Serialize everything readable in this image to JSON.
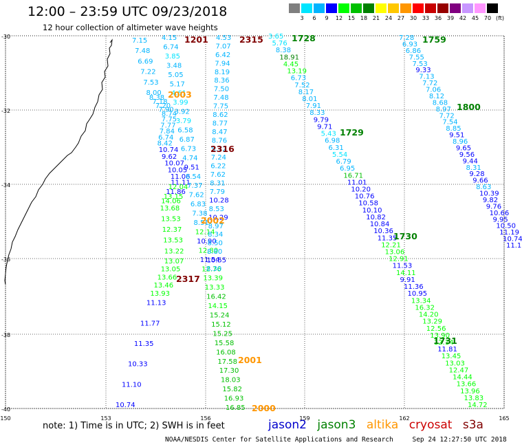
{
  "title": "12:00 – 23:59 UTC 09/23/2018",
  "subtitle": "12 hour collection of altimeter wave heights",
  "colorbar": {
    "labels": [
      "3",
      "6",
      "9",
      "12",
      "15",
      "18",
      "21",
      "24",
      "27",
      "30",
      "33",
      "36",
      "39",
      "42",
      "45",
      "70",
      "(ft)"
    ],
    "colors": [
      "#7f7f7f",
      "#00e5ff",
      "#00b4ff",
      "#0000ff",
      "#00ff00",
      "#00c000",
      "#008000",
      "#ffff00",
      "#ffc800",
      "#ff9600",
      "#ff0000",
      "#c80000",
      "#960000",
      "#800080",
      "#c896ff",
      "#ff96ff",
      "#000000"
    ]
  },
  "map": {
    "lat_labels": [
      "-30",
      "-32",
      "-34",
      "-36",
      "-38",
      "-40"
    ],
    "lon_labels": [
      "150",
      "153",
      "156",
      "159",
      "162",
      "165"
    ]
  },
  "note": "note: 1) Time is in UTC; 2) SWH is in feet",
  "legend": {
    "items": [
      {
        "label": "jason2",
        "color": "#0000cc"
      },
      {
        "label": "jason3",
        "color": "#008000"
      },
      {
        "label": "altika",
        "color": "#ff9600"
      },
      {
        "label": "cryosat",
        "color": "#cc0000"
      },
      {
        "label": "s3a",
        "color": "#800000"
      }
    ]
  },
  "credit": {
    "org": "NOAA/NESDIS Center for Satellite Applications and Research",
    "timestamp": "Sep 24 12:27:50 UTC 2018"
  },
  "tracks": [
    {
      "values": [
        "7.15",
        "7.48",
        "6.69",
        "7.22",
        "7.53",
        "8.00",
        "8.38",
        "7.18",
        "7.20",
        "7.90",
        "8.74",
        "7.75",
        "7.77",
        "7.84",
        "6.74",
        "8.42",
        "10.74",
        "9.62",
        "10.07",
        "10.05",
        "11.06",
        "11.11",
        "12.04",
        "11.86",
        "13.15",
        "14.06",
        "13.68",
        "13.53",
        "12.37",
        "13.53",
        "13.22",
        "13.07",
        "13.05",
        "13.66",
        "13.46",
        "13.93",
        "11.13",
        "11.77",
        "11.35",
        "10.33",
        "11.10",
        "10.74"
      ],
      "colors": [
        "#00b4ff",
        "#00b4ff",
        "#00b4ff",
        "#00b4ff",
        "#00b4ff",
        "#00b4ff",
        "#00b4ff",
        "#00b4ff",
        "#00b4ff",
        "#00b4ff",
        "#00b4ff",
        "#00b4ff",
        "#00b4ff",
        "#00b4ff",
        "#00b4ff",
        "#00b4ff",
        "#0000ff",
        "#0000ff",
        "#0000ff",
        "#0000ff",
        "#0000ff",
        "#0000ff",
        "#00ff00",
        "#0000ff",
        "#00ff00",
        "#00ff00",
        "#00ff00",
        "#00ff00",
        "#00ff00",
        "#00ff00",
        "#00ff00",
        "#00ff00",
        "#00ff00",
        "#00ff00",
        "#00ff00",
        "#00ff00",
        "#0000ff",
        "#0000ff",
        "#0000ff",
        "#0000ff",
        "#0000ff",
        "#0000ff"
      ]
    },
    {
      "values": [
        "4.15",
        "6.74",
        "3.85",
        "3.48",
        "5.05",
        "5.17",
        "4.61",
        "3.99",
        "3.92",
        "3.79",
        "6.58",
        "6.87",
        "6.73",
        "4.74",
        "9.51",
        "8.54",
        "7.37",
        "7.62",
        "6.83",
        "7.38",
        "8.51",
        "12.14",
        "10.90",
        "12.80",
        "11.54",
        "12.76",
        "13.39",
        "13.33",
        "16.42",
        "14.15",
        "15.24",
        "15.12",
        "15.25",
        "15.58",
        "16.08",
        "17.58",
        "17.30",
        "18.03",
        "15.82",
        "16.93",
        "16.85"
      ],
      "colors": [
        "#00b4ff",
        "#00b4ff",
        "#00e5ff",
        "#00b4ff",
        "#00b4ff",
        "#00b4ff",
        "#00e5ff",
        "#00e5ff",
        "#00b4ff",
        "#00e5ff",
        "#00b4ff",
        "#00b4ff",
        "#00b4ff",
        "#00b4ff",
        "#0000ff",
        "#00b4ff",
        "#00b4ff",
        "#00b4ff",
        "#00b4ff",
        "#00b4ff",
        "#00b4ff",
        "#00ff00",
        "#0000ff",
        "#00ff00",
        "#0000ff",
        "#00ff00",
        "#00ff00",
        "#00ff00",
        "#00c000",
        "#00ff00",
        "#00c000",
        "#00c000",
        "#00c000",
        "#00c000",
        "#00c000",
        "#00c000",
        "#00c000",
        "#00c000",
        "#00c000",
        "#00c000",
        "#00c000"
      ]
    },
    {
      "values": [
        "4.53",
        "7.07",
        "6.42",
        "7.94",
        "8.19",
        "8.36",
        "7.50",
        "7.48",
        "7.75",
        "8.62",
        "8.77",
        "8.47",
        "8.76",
        "5.72",
        "7.24",
        "6.22",
        "7.62",
        "8.31",
        "7.79",
        "10.28",
        "8.53",
        "10.29",
        "8.97",
        "8.34",
        "8.50",
        "8.80",
        "10.55",
        "8.30"
      ],
      "colors": [
        "#00b4ff",
        "#00b4ff",
        "#00b4ff",
        "#00b4ff",
        "#00b4ff",
        "#00b4ff",
        "#00b4ff",
        "#00b4ff",
        "#00b4ff",
        "#00b4ff",
        "#00b4ff",
        "#00b4ff",
        "#00b4ff",
        "#00b4ff",
        "#00b4ff",
        "#00b4ff",
        "#00b4ff",
        "#00b4ff",
        "#00b4ff",
        "#0000ff",
        "#00b4ff",
        "#0000ff",
        "#00b4ff",
        "#00b4ff",
        "#00b4ff",
        "#00b4ff",
        "#0000ff",
        "#00b4ff"
      ]
    },
    {
      "values": [
        "3.65",
        "5.76",
        "8.38",
        "18.91",
        "4.45",
        "13.19",
        "6.73",
        "7.52",
        "8.17",
        "8.01",
        "7.91",
        "8.33",
        "9.79",
        "9.71",
        "5.43",
        "6.98",
        "6.31",
        "5.54",
        "6.79",
        "6.95",
        "16.71",
        "11.01",
        "10.20",
        "10.76",
        "10.58",
        "10.10",
        "10.82",
        "10.84",
        "10.36",
        "11.35",
        "12.21",
        "13.06",
        "12.91",
        "11.53",
        "14.11",
        "9.91",
        "11.36",
        "10.95",
        "13.34",
        "16.32",
        "14.20",
        "13.29",
        "12.56",
        "13.90",
        "12.14",
        "11.81",
        "13.45",
        "13.03",
        "12.47",
        "14.44",
        "13.66",
        "13.96",
        "13.83",
        "14.72"
      ],
      "colors": [
        "#00e5ff",
        "#00e5ff",
        "#00b4ff",
        "#008000",
        "#00ff00",
        "#00ff00",
        "#00b4ff",
        "#00b4ff",
        "#00b4ff",
        "#00b4ff",
        "#00b4ff",
        "#00b4ff",
        "#0000ff",
        "#0000ff",
        "#00e5ff",
        "#00b4ff",
        "#00b4ff",
        "#00e5ff",
        "#00b4ff",
        "#00b4ff",
        "#00c000",
        "#0000ff",
        "#0000ff",
        "#0000ff",
        "#0000ff",
        "#0000ff",
        "#0000ff",
        "#0000ff",
        "#0000ff",
        "#0000ff",
        "#00ff00",
        "#00ff00",
        "#00ff00",
        "#0000ff",
        "#00ff00",
        "#0000ff",
        "#0000ff",
        "#0000ff",
        "#00ff00",
        "#00ff00",
        "#00ff00",
        "#00ff00",
        "#00ff00",
        "#00ff00",
        "#00ff00",
        "#0000ff",
        "#00ff00",
        "#00ff00",
        "#00ff00",
        "#00ff00",
        "#00ff00",
        "#00ff00",
        "#00ff00",
        "#00ff00"
      ]
    },
    {
      "values": [
        "7.28",
        "6.93",
        "6.86",
        "7.55",
        "7.53",
        "9.33",
        "7.13",
        "7.72",
        "7.06",
        "8.12",
        "8.68",
        "8.97",
        "7.72",
        "7.54",
        "8.85",
        "9.51",
        "8.96",
        "9.65",
        "9.56",
        "9.44",
        "8.31",
        "9.28",
        "9.66",
        "8.63",
        "10.39",
        "9.82",
        "9.76",
        "10.66",
        "9.95",
        "10.50",
        "11.19",
        "10.74",
        "11.1"
      ],
      "colors": [
        "#00b4ff",
        "#00b4ff",
        "#00b4ff",
        "#00b4ff",
        "#00b4ff",
        "#0000ff",
        "#00b4ff",
        "#00b4ff",
        "#00b4ff",
        "#00b4ff",
        "#00b4ff",
        "#00b4ff",
        "#00b4ff",
        "#00b4ff",
        "#00b4ff",
        "#0000ff",
        "#00b4ff",
        "#0000ff",
        "#0000ff",
        "#0000ff",
        "#00b4ff",
        "#0000ff",
        "#0000ff",
        "#00b4ff",
        "#0000ff",
        "#0000ff",
        "#0000ff",
        "#0000ff",
        "#0000ff",
        "#0000ff",
        "#0000ff",
        "#0000ff",
        "#0000ff"
      ]
    }
  ],
  "time_labels": [
    {
      "text": "1201",
      "color": "#800000"
    },
    {
      "text": "2315",
      "color": "#800000"
    },
    {
      "text": "1728",
      "color": "#008000"
    },
    {
      "text": "1759",
      "color": "#008000"
    },
    {
      "text": "2003",
      "color": "#ff9600"
    },
    {
      "text": "1800",
      "color": "#008000"
    },
    {
      "text": "1729",
      "color": "#008000"
    },
    {
      "text": "2316",
      "color": "#800000"
    },
    {
      "text": "2002",
      "color": "#ff9600"
    },
    {
      "text": "1730",
      "color": "#008000"
    },
    {
      "text": "2317",
      "color": "#800000"
    },
    {
      "text": "1731",
      "color": "#008000"
    },
    {
      "text": "2001",
      "color": "#ff9600"
    },
    {
      "text": "2000",
      "color": "#ff9600"
    }
  ]
}
